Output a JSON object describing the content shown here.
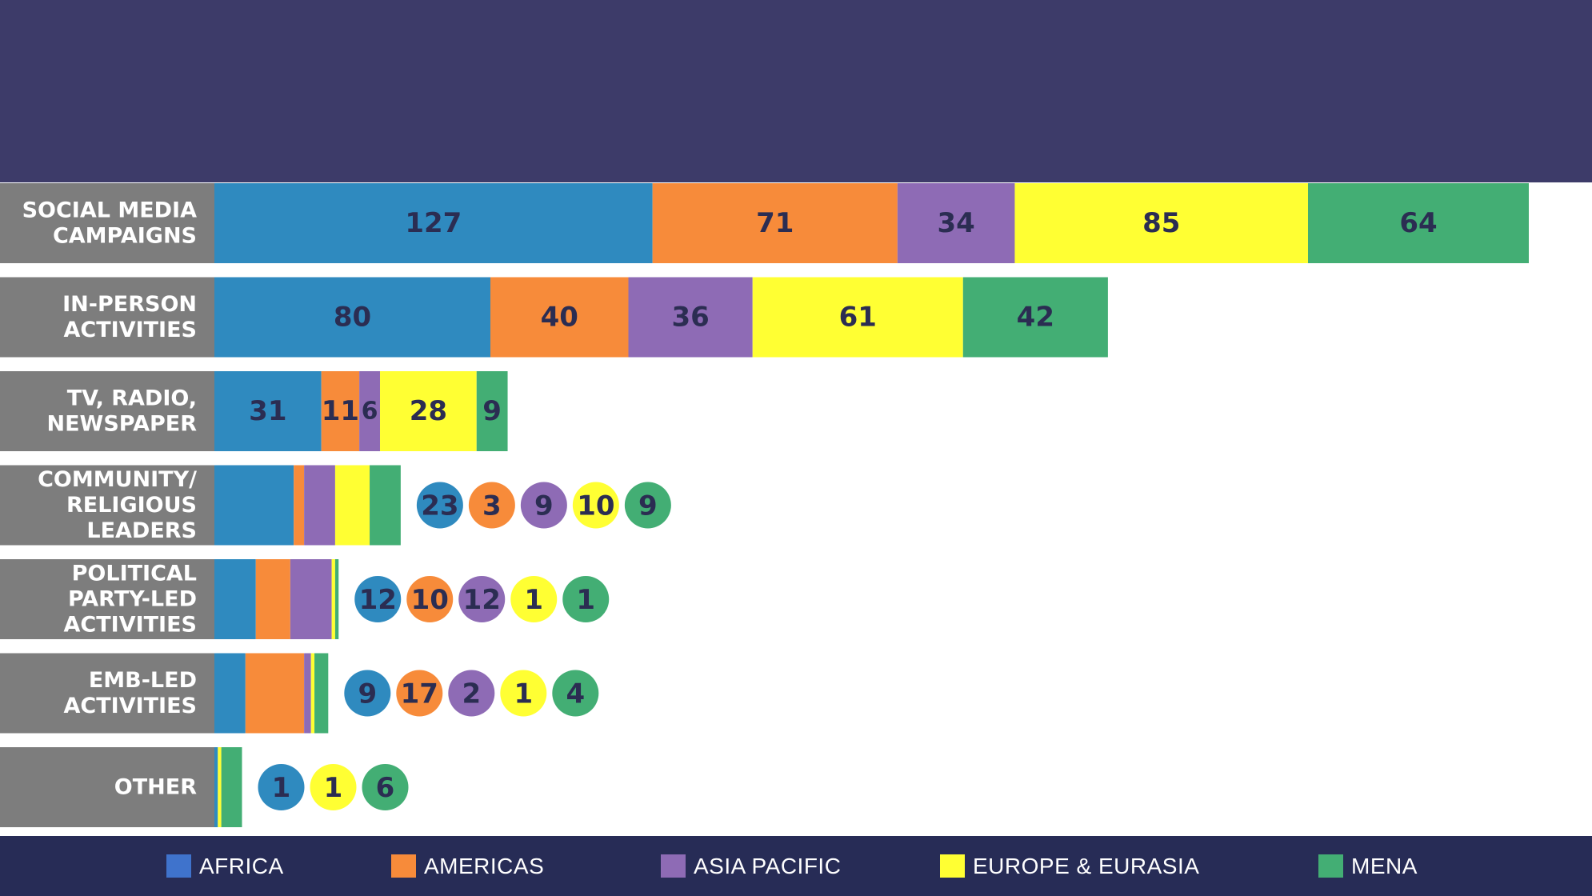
{
  "chart_data": {
    "type": "bar",
    "orientation": "horizontal",
    "stacked": true,
    "categories": [
      [
        "SOCIAL MEDIA",
        "CAMPAIGNS"
      ],
      [
        "IN-PERSON",
        "ACTIVITIES"
      ],
      [
        "TV, RADIO,",
        "NEWSPAPER"
      ],
      [
        "COMMUNITY/",
        "RELIGIOUS",
        "LEADERS"
      ],
      [
        "POLITICAL",
        "PARTY-LED",
        "ACTIVITIES"
      ],
      [
        "EMB-LED",
        "ACTIVITIES"
      ],
      [
        "OTHER"
      ]
    ],
    "series": [
      {
        "name": "AFRICA",
        "color": "#2f8abf",
        "values": [
          127,
          80,
          31,
          23,
          12,
          9,
          1
        ]
      },
      {
        "name": "AMERICAS",
        "color": "#f78b3a",
        "values": [
          71,
          40,
          11,
          3,
          10,
          17,
          0
        ]
      },
      {
        "name": "ASIA PACIFIC",
        "color": "#8e6bb5",
        "values": [
          34,
          36,
          6,
          9,
          12,
          2,
          0
        ]
      },
      {
        "name": "EUROPE & EURASIA",
        "color": "#ffff33",
        "values": [
          85,
          61,
          28,
          10,
          1,
          1,
          1
        ]
      },
      {
        "name": "MENA",
        "color": "#43ae74",
        "values": [
          64,
          42,
          9,
          9,
          1,
          4,
          6
        ]
      }
    ],
    "label_mode": [
      "inside",
      "inside",
      "inside",
      "bubbles",
      "bubbles",
      "bubbles",
      "bubbles"
    ],
    "grid": false,
    "legend_position": "bottom"
  },
  "legend_swatch_colors": {
    "AFRICA": "#3f73cc",
    "AMERICAS": "#f78b3a",
    "ASIA PACIFIC": "#8e6bb5",
    "EUROPE & EURASIA": "#ffff33",
    "MENA": "#43ae74"
  },
  "colors": {
    "header_band": "#3d3b69",
    "category_label_bg": "#7d7d7d",
    "legend_bar_bg": "#272c56",
    "value_text": "#2b2d52"
  }
}
